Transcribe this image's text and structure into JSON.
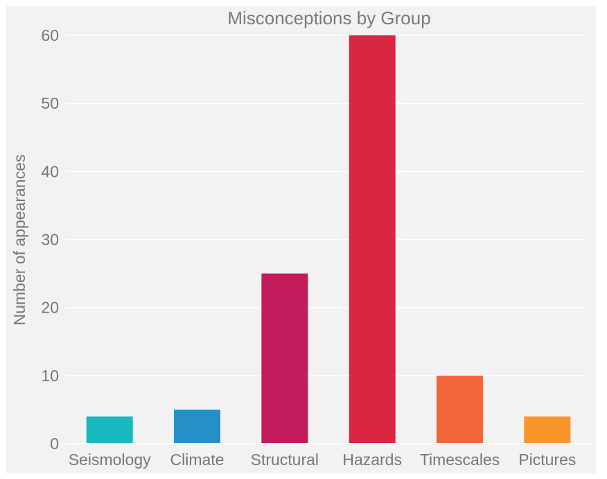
{
  "chart_data": {
    "type": "bar",
    "title": "Misconceptions by Group",
    "xlabel": "",
    "ylabel": "Number of appearances",
    "categories": [
      "Seismology",
      "Climate",
      "Structural",
      "Hazards",
      "Timescales",
      "Pictures"
    ],
    "values": [
      4,
      5,
      25,
      60,
      10,
      4
    ],
    "colors": [
      "#1ab8bf",
      "#2590c8",
      "#c41b5c",
      "#d92641",
      "#f1663b",
      "#f99528"
    ],
    "ylim": [
      0,
      60
    ],
    "yticks": [
      0,
      10,
      20,
      30,
      40,
      50,
      60
    ],
    "grid": true,
    "legend": "none",
    "background": "#f2f2f2",
    "gridcolor": "#ffffff"
  }
}
